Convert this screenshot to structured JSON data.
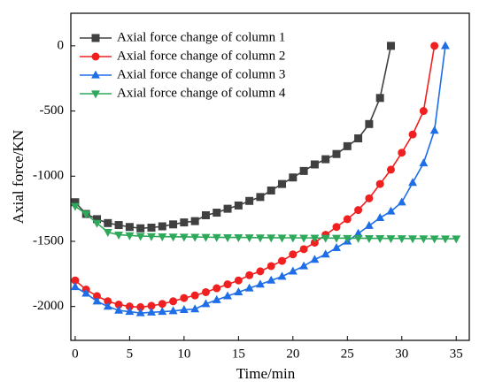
{
  "chart_data": {
    "type": "line",
    "x_label": "Time/min",
    "y_label": "Axial force/KN",
    "xlim": [
      -0.4,
      36.2
    ],
    "xticks": [
      0,
      5,
      10,
      15,
      20,
      25,
      30,
      35
    ],
    "ylim": [
      -2260,
      250
    ],
    "yticks": [
      -2000,
      -1500,
      -1000,
      -500,
      0
    ],
    "legend": "upper-left",
    "series": [
      {
        "name": "Axial force change of column 1",
        "color": "#404040",
        "marker": "square",
        "x": [
          0,
          1,
          2,
          3,
          4,
          5,
          6,
          7,
          8,
          9,
          10,
          11,
          12,
          13,
          14,
          15,
          16,
          17,
          18,
          19,
          20,
          21,
          22,
          23,
          24,
          25,
          26,
          27,
          28,
          29
        ],
        "values": [
          -1200,
          -1290,
          -1330,
          -1360,
          -1375,
          -1390,
          -1400,
          -1395,
          -1385,
          -1370,
          -1355,
          -1345,
          -1300,
          -1280,
          -1250,
          -1225,
          -1190,
          -1160,
          -1110,
          -1060,
          -1010,
          -960,
          -910,
          -870,
          -830,
          -770,
          -710,
          -600,
          -400,
          0
        ]
      },
      {
        "name": "Axial force change of column 2",
        "color": "#f02020",
        "marker": "circle",
        "x": [
          0,
          1,
          2,
          3,
          4,
          5,
          6,
          7,
          8,
          9,
          10,
          11,
          12,
          13,
          14,
          15,
          16,
          17,
          18,
          19,
          20,
          21,
          22,
          23,
          24,
          25,
          26,
          27,
          28,
          29,
          30,
          31,
          32,
          33
        ],
        "values": [
          -1800,
          -1870,
          -1920,
          -1960,
          -1985,
          -2000,
          -2005,
          -1995,
          -1980,
          -1960,
          -1935,
          -1915,
          -1890,
          -1860,
          -1830,
          -1800,
          -1760,
          -1730,
          -1690,
          -1650,
          -1600,
          -1560,
          -1510,
          -1450,
          -1390,
          -1330,
          -1260,
          -1170,
          -1060,
          -950,
          -820,
          -680,
          -500,
          0
        ]
      },
      {
        "name": "Axial force change of column 3",
        "color": "#1e6ee8",
        "marker": "triangle-up",
        "x": [
          0,
          1,
          2,
          3,
          4,
          5,
          6,
          7,
          8,
          9,
          10,
          11,
          12,
          13,
          14,
          15,
          16,
          17,
          18,
          19,
          20,
          21,
          22,
          23,
          24,
          25,
          26,
          27,
          28,
          29,
          30,
          31,
          32,
          33,
          34
        ],
        "values": [
          -1850,
          -1900,
          -1960,
          -2000,
          -2030,
          -2040,
          -2050,
          -2045,
          -2040,
          -2035,
          -2025,
          -2020,
          -1980,
          -1950,
          -1920,
          -1890,
          -1860,
          -1830,
          -1800,
          -1770,
          -1730,
          -1690,
          -1640,
          -1600,
          -1550,
          -1500,
          -1440,
          -1380,
          -1320,
          -1270,
          -1200,
          -1050,
          -900,
          -650,
          0
        ]
      },
      {
        "name": "Axial force change of column 4",
        "color": "#2ea85a",
        "marker": "triangle-down",
        "x": [
          0,
          1,
          2,
          3,
          4,
          5,
          6,
          7,
          8,
          9,
          10,
          11,
          12,
          13,
          14,
          15,
          16,
          17,
          18,
          19,
          20,
          21,
          22,
          23,
          24,
          25,
          26,
          27,
          28,
          29,
          30,
          31,
          32,
          33,
          34,
          35
        ],
        "values": [
          -1230,
          -1290,
          -1360,
          -1430,
          -1450,
          -1455,
          -1460,
          -1462,
          -1464,
          -1465,
          -1466,
          -1467,
          -1468,
          -1469,
          -1470,
          -1470,
          -1471,
          -1472,
          -1472,
          -1473,
          -1473,
          -1474,
          -1474,
          -1475,
          -1475,
          -1476,
          -1476,
          -1477,
          -1477,
          -1478,
          -1478,
          -1479,
          -1479,
          -1480,
          -1480,
          -1480
        ]
      }
    ]
  }
}
